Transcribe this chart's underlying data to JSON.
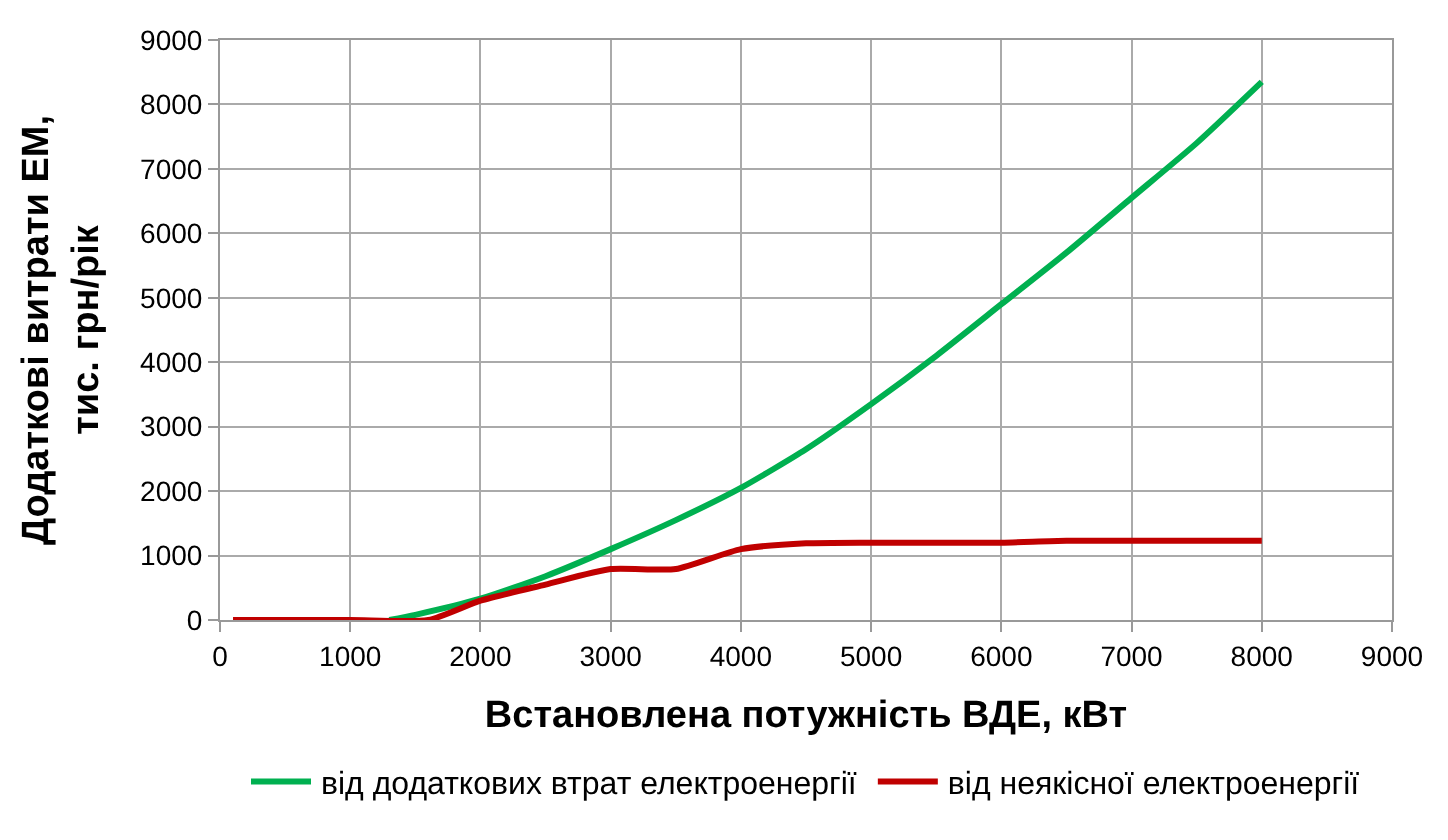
{
  "chart_data": {
    "type": "line",
    "xlabel": "Встановлена потужність ВДЕ, кВт",
    "ylabel": "Додаткові витрати ЕМ,\nтис. грн/рік",
    "xlim": [
      0,
      9000
    ],
    "xticks": [
      0,
      1000,
      2000,
      3000,
      4000,
      5000,
      6000,
      7000,
      8000,
      9000
    ],
    "ylim": [
      0,
      9000
    ],
    "yticks": [
      0,
      1000,
      2000,
      3000,
      4000,
      5000,
      6000,
      7000,
      8000,
      9000
    ],
    "grid": true,
    "legend": "bottom",
    "marker": "none",
    "line_style": "solid",
    "series": [
      {
        "name": "від додаткових втрат електроенергії",
        "color": "#00b050",
        "x": [
          1300,
          1500,
          2000,
          2500,
          3000,
          3500,
          4000,
          4500,
          5000,
          5500,
          6000,
          6500,
          7000,
          7500,
          8000
        ],
        "values": [
          0,
          80,
          330,
          680,
          1100,
          1550,
          2050,
          2650,
          3350,
          4100,
          4900,
          5700,
          6550,
          7400,
          8350
        ]
      },
      {
        "name": "від неякісної електроенергії",
        "color": "#c00000",
        "x": [
          100,
          1000,
          1600,
          2000,
          2500,
          3000,
          3500,
          4000,
          4500,
          5000,
          6000,
          6500,
          8000
        ],
        "values": [
          0,
          0,
          0,
          300,
          550,
          790,
          790,
          1100,
          1190,
          1200,
          1200,
          1230,
          1230
        ]
      }
    ]
  }
}
